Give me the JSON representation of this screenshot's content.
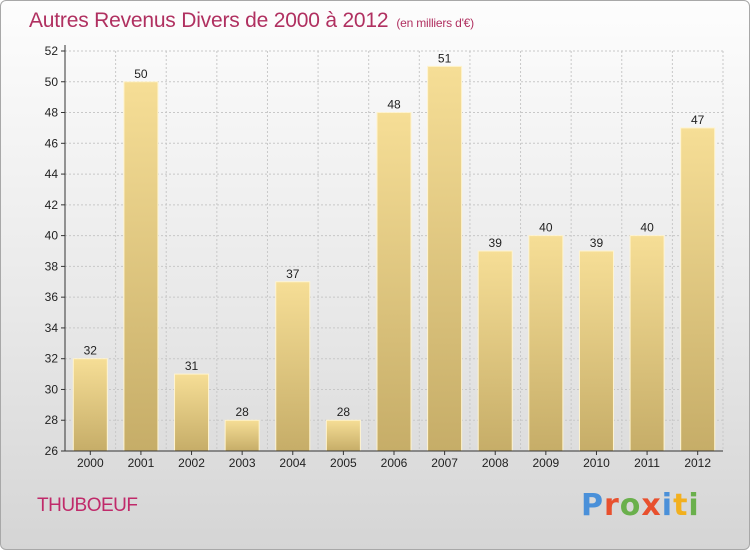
{
  "header": {
    "title": "Autres Revenus Divers de 2000 à 2012",
    "subtitle": "(en milliers d'€)"
  },
  "footer": {
    "commune": "THUBOEUF",
    "brand": "Proxiti"
  },
  "colors": {
    "title": "#b03060",
    "bar_light": "#f6de96",
    "bar_dark": "#c6ad68",
    "grid": "#c8c8c8"
  },
  "chart_data": {
    "type": "bar",
    "title": "Autres Revenus Divers de 2000 à 2012",
    "subtitle": "(en milliers d'€)",
    "xlabel": "",
    "ylabel": "",
    "categories": [
      "2000",
      "2001",
      "2002",
      "2003",
      "2004",
      "2005",
      "2006",
      "2007",
      "2008",
      "2009",
      "2010",
      "2011",
      "2012"
    ],
    "values": [
      32,
      50,
      31,
      28,
      37,
      28,
      48,
      51,
      39,
      40,
      39,
      40,
      47
    ],
    "ylim": [
      26,
      52
    ],
    "yticks": [
      26,
      28,
      30,
      32,
      34,
      36,
      38,
      40,
      42,
      44,
      46,
      48,
      50,
      52
    ],
    "grid": true,
    "data_labels": true
  }
}
